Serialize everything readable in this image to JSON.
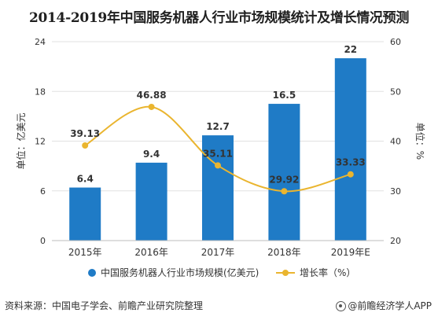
{
  "chart_data": {
    "type": "bar",
    "title": "2014-2019年中国服务机器人行业市场规模统计及增长情况预测",
    "categories": [
      "2015年",
      "2016年",
      "2017年",
      "2018年",
      "2019年E"
    ],
    "series": [
      {
        "name": "中国服务机器人行业市场规模(亿美元)",
        "type": "bar",
        "axis": "left",
        "values": [
          6.4,
          9.4,
          12.7,
          16.5,
          22
        ],
        "labels": [
          "6.4",
          "9.4",
          "12.7",
          "16.5",
          "22"
        ]
      },
      {
        "name": "增长率（%）",
        "type": "line",
        "axis": "right",
        "values": [
          39.13,
          46.88,
          35.11,
          29.92,
          33.33
        ],
        "labels": [
          "39.13",
          "46.88",
          "35.11",
          "29.92",
          "33.33"
        ]
      }
    ],
    "ylabel_left": "单位：亿美元",
    "ylabel_right": "单位：%",
    "ylim_left": [
      0,
      24
    ],
    "yticks_left": [
      0,
      6,
      12,
      18,
      24
    ],
    "ylim_right": [
      20,
      60
    ],
    "yticks_right": [
      20,
      30,
      40,
      50,
      60
    ],
    "grid": true,
    "legend_position": "bottom",
    "colors": {
      "bar": "#1f7bc6",
      "line": "#eab52f",
      "grid": "#e2e2e2",
      "text": "#333333"
    }
  },
  "footer": {
    "source": "资料来源：中国电子学会、前瞻产业研究院整理",
    "brand": "@前瞻经济学人APP"
  }
}
